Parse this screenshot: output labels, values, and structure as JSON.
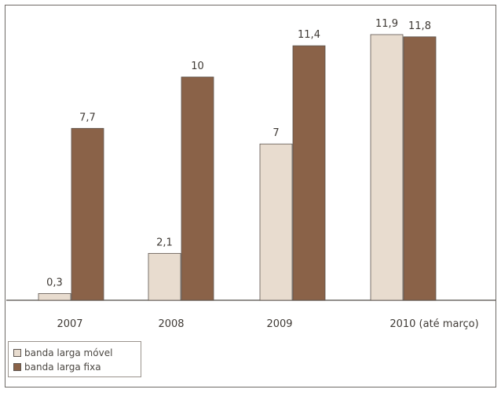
{
  "chart_data": {
    "type": "bar",
    "categories": [
      "2007",
      "2008",
      "2009",
      "2010 (até março)"
    ],
    "series": [
      {
        "name": "banda larga móvel",
        "values": [
          0.3,
          2.1,
          7,
          11.9
        ],
        "labels": [
          "0,3",
          "2,1",
          "7",
          "11,9"
        ],
        "color": "#e8dccf"
      },
      {
        "name": "banda larga fixa",
        "values": [
          7.7,
          10,
          11.4,
          11.8
        ],
        "labels": [
          "7,7",
          "10",
          "11,4",
          "11,8"
        ],
        "color": "#8a6248"
      }
    ],
    "title": "",
    "xlabel": "",
    "ylabel": "",
    "ylim": [
      0,
      11.9
    ],
    "grid": false,
    "legend": "bottom-left"
  }
}
